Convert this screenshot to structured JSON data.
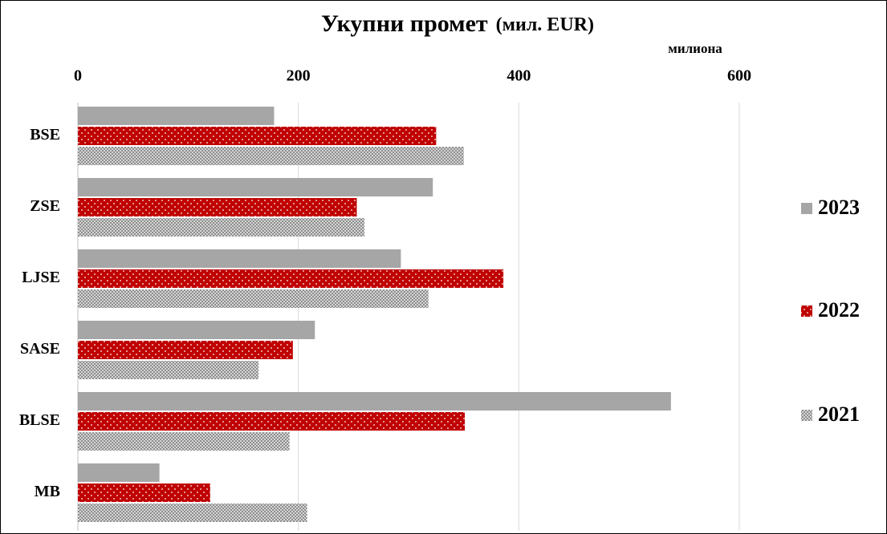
{
  "chart_data": {
    "type": "hbar",
    "title": "Укупни промет",
    "subtitle": "(мил. EUR)",
    "x_label": "милиона",
    "categories": [
      "BSE",
      "ZSE",
      "LJSE",
      "SASE",
      "BLSE",
      "MB"
    ],
    "series": [
      {
        "name": "2023",
        "color": "#a6a6a6",
        "pattern": "solid",
        "values": [
          178,
          322,
          293,
          215,
          538,
          74
        ]
      },
      {
        "name": "2022",
        "color": "#c00000",
        "pattern": "dots",
        "values": [
          325,
          253,
          386,
          195,
          351,
          120
        ]
      },
      {
        "name": "2021",
        "color": "#a6a6a6",
        "pattern": "hatch",
        "values": [
          350,
          260,
          318,
          164,
          192,
          208
        ]
      }
    ],
    "xlim": [
      0,
      600
    ],
    "xticks": [
      0,
      200,
      400,
      600
    ],
    "grid": true,
    "legend": "right"
  }
}
